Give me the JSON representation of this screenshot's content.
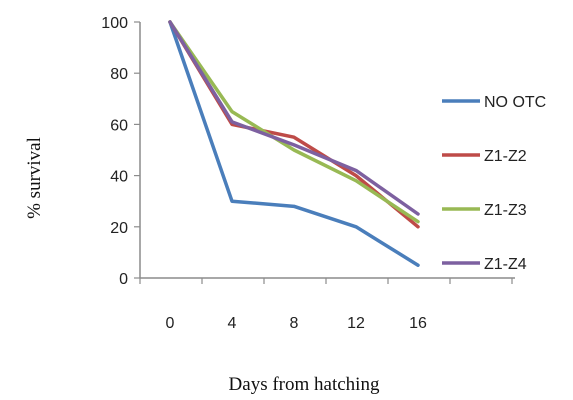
{
  "chart_data": {
    "type": "line",
    "title": "",
    "xlabel": "Days from hatching",
    "ylabel": "% survival",
    "categories": [
      "0",
      "4",
      "8",
      "12",
      "16"
    ],
    "ylim": [
      0,
      100
    ],
    "yticks": [
      "0",
      "20",
      "40",
      "60",
      "80",
      "100"
    ],
    "grid": false,
    "legend_position": "right",
    "series": [
      {
        "name": "NO OTC",
        "color": "#4a7ebb",
        "values": [
          100,
          30,
          28,
          20,
          5
        ]
      },
      {
        "name": "Z1-Z2",
        "color": "#be4b48",
        "values": [
          100,
          60,
          55,
          40,
          20
        ]
      },
      {
        "name": "Z1-Z3",
        "color": "#98b954",
        "values": [
          100,
          65,
          50,
          38,
          22
        ]
      },
      {
        "name": "Z1-Z4",
        "color": "#7d60a0",
        "values": [
          100,
          61,
          52,
          42,
          25
        ]
      }
    ]
  }
}
